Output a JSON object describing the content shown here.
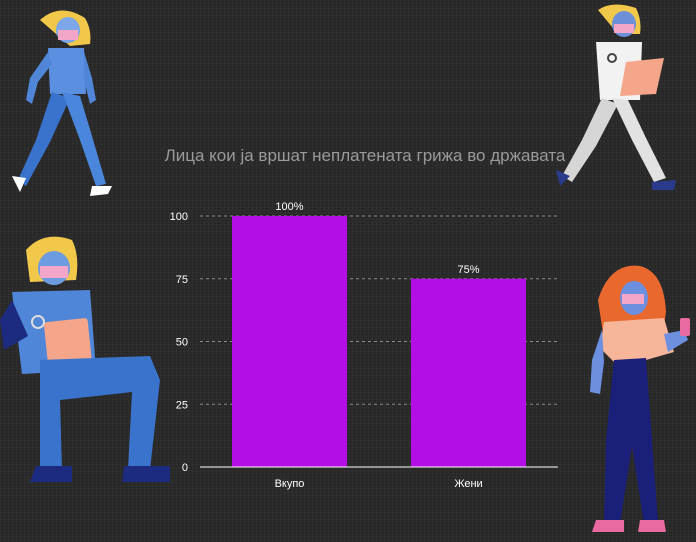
{
  "chart_data": {
    "type": "bar",
    "title": "Лица кои ја вршат неплатената грижа во државата",
    "categories": [
      "Вкупо",
      "Жени"
    ],
    "values": [
      100,
      75
    ],
    "data_labels": [
      "100%",
      "75%"
    ],
    "yticks": [
      "0",
      "25",
      "50",
      "75",
      "100"
    ],
    "ylim": [
      0,
      100
    ],
    "xlabel": "",
    "ylabel": "",
    "grid": true,
    "bar_color": "#b40ee6"
  },
  "illustrations": [
    "person-walking-icon",
    "doctor-walking-icon",
    "seated-nurse-icon",
    "woman-with-phone-icon"
  ]
}
